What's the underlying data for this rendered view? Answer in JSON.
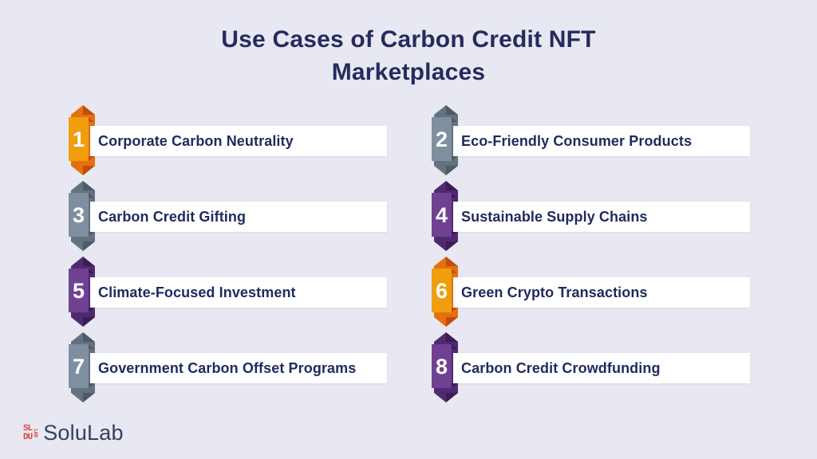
{
  "title": "Use Cases of Carbon Credit NFT Marketplaces",
  "items": [
    {
      "number": "1",
      "label": "Corporate Carbon Neutrality",
      "color": "orange"
    },
    {
      "number": "2",
      "label": "Eco-Friendly Consumer Products",
      "color": "gray"
    },
    {
      "number": "3",
      "label": "Carbon Credit Gifting",
      "color": "gray"
    },
    {
      "number": "4",
      "label": "Sustainable Supply Chains",
      "color": "purple"
    },
    {
      "number": "5",
      "label": "Climate-Focused Investment",
      "color": "purple"
    },
    {
      "number": "6",
      "label": "Green Crypto Transactions",
      "color": "orange"
    },
    {
      "number": "7",
      "label": "Government Carbon Offset Programs",
      "color": "gray"
    },
    {
      "number": "8",
      "label": "Carbon Credit Crowdfunding",
      "color": "purple"
    }
  ],
  "logo": {
    "mark_line1": "SL",
    "mark_line2": "DU",
    "mark_vertical": "LAB",
    "name": "SoluLab"
  },
  "colors": {
    "background": "#e8e8f2",
    "title_text": "#252b5e",
    "item_text": "#1f2a5e",
    "bar_background": "#ffffff",
    "logo_red": "#d9453c",
    "logo_text": "#33415c",
    "badge_palettes": {
      "orange": {
        "front": "#f09d0e",
        "back": "#e4710e",
        "dark": "#c34a10"
      },
      "gray": {
        "front": "#7f8fa0",
        "back": "#64727f",
        "dark": "#4e5a66"
      },
      "purple": {
        "front": "#6f4192",
        "back": "#502a70",
        "dark": "#3c1d54"
      }
    }
  }
}
